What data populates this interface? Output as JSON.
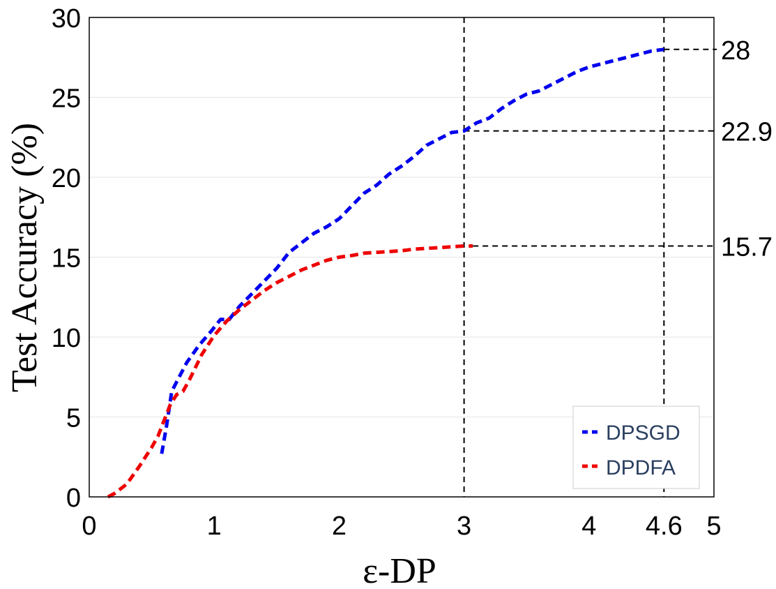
{
  "chart_data": {
    "type": "line",
    "xlabel": "ε-DP",
    "ylabel": "Test Accuracy (%)",
    "xlim": [
      0,
      5
    ],
    "ylim": [
      0,
      30
    ],
    "x_ticks": [
      "0",
      "1",
      "2",
      "3",
      "4",
      "4.6",
      "5"
    ],
    "x_tick_values": [
      0,
      1,
      2,
      3,
      4,
      4.6,
      5
    ],
    "y_ticks": [
      "0",
      "5",
      "10",
      "15",
      "20",
      "25",
      "30"
    ],
    "y_tick_values": [
      0,
      5,
      10,
      15,
      20,
      25,
      30
    ],
    "grid": "horizontal",
    "legend_position": "bottom-right",
    "series": [
      {
        "name": "DPSGD",
        "color": "#0000ee",
        "x": [
          0.58,
          0.62,
          0.66,
          0.7,
          0.78,
          0.88,
          0.98,
          1.05,
          1.12,
          1.2,
          1.3,
          1.4,
          1.5,
          1.6,
          1.7,
          1.8,
          1.9,
          2.0,
          2.1,
          2.2,
          2.3,
          2.4,
          2.5,
          2.6,
          2.7,
          2.8,
          2.9,
          3.0,
          3.1,
          3.2,
          3.3,
          3.4,
          3.5,
          3.6,
          3.7,
          3.8,
          3.9,
          4.0,
          4.1,
          4.2,
          4.3,
          4.4,
          4.5,
          4.6
        ],
        "y": [
          2.7,
          4.5,
          6.6,
          7.2,
          8.4,
          9.5,
          10.4,
          11.1,
          11.1,
          11.9,
          12.7,
          13.5,
          14.3,
          15.3,
          15.9,
          16.5,
          16.9,
          17.4,
          18.2,
          19.0,
          19.5,
          20.2,
          20.7,
          21.3,
          22.0,
          22.4,
          22.8,
          22.9,
          23.4,
          23.7,
          24.3,
          24.8,
          25.2,
          25.4,
          25.8,
          26.2,
          26.6,
          26.9,
          27.1,
          27.3,
          27.5,
          27.7,
          27.9,
          28.0
        ]
      },
      {
        "name": "DPDFA",
        "color": "#ee0000",
        "x": [
          0.15,
          0.2,
          0.3,
          0.4,
          0.5,
          0.55,
          0.6,
          0.65,
          0.7,
          0.75,
          0.8,
          0.9,
          1.0,
          1.1,
          1.2,
          1.3,
          1.4,
          1.5,
          1.6,
          1.7,
          1.8,
          1.9,
          2.0,
          2.1,
          2.2,
          2.3,
          2.4,
          2.5,
          2.6,
          2.7,
          2.8,
          2.9,
          3.0,
          3.07
        ],
        "y": [
          0.0,
          0.2,
          0.8,
          1.9,
          3.1,
          3.8,
          4.8,
          5.8,
          6.4,
          6.6,
          7.3,
          8.9,
          10.1,
          11.0,
          11.7,
          12.3,
          12.9,
          13.4,
          13.8,
          14.2,
          14.5,
          14.8,
          15.0,
          15.1,
          15.25,
          15.3,
          15.35,
          15.4,
          15.5,
          15.55,
          15.6,
          15.65,
          15.7,
          15.7
        ]
      }
    ],
    "reference_lines": {
      "vertical": [
        3,
        4.6
      ],
      "horizontal": [
        {
          "value": 28,
          "x_start": 4.6,
          "label": "28"
        },
        {
          "value": 22.9,
          "x_start": 3,
          "label": "22.9"
        },
        {
          "value": 15.7,
          "x_start": 3.07,
          "label": "15.7"
        }
      ]
    }
  }
}
